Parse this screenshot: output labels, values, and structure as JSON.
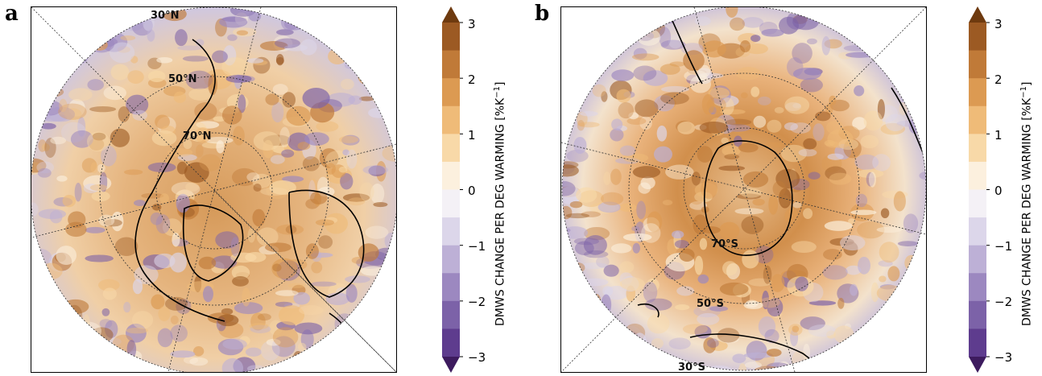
{
  "panels": [
    {
      "letter": "a",
      "hemisphere": "north",
      "lat_labels": [
        "30°N",
        "50°N",
        "70°N"
      ]
    },
    {
      "letter": "b",
      "hemisphere": "south",
      "lat_labels": [
        "30°S",
        "50°S",
        "70°S"
      ]
    }
  ],
  "colorbar": {
    "label": "DMWS CHANGE PER DEG WARMING [%K",
    "label_exponent": "−1",
    "label_close": "]",
    "ticks": [
      "3",
      "2",
      "1",
      "0",
      "−1",
      "−2",
      "−3"
    ],
    "tick_values": [
      3,
      2,
      1,
      0,
      -1,
      -2,
      -3
    ],
    "range": [
      -3,
      3
    ],
    "levels": 12,
    "colors": [
      "#3d1b5e",
      "#5e3c8e",
      "#7c62a8",
      "#9c88c0",
      "#bdb0d6",
      "#dcd6ea",
      "#f4f1f6",
      "#fcf0de",
      "#f8d9a8",
      "#efbb78",
      "#dc9a52",
      "#c07a38",
      "#9c5a23",
      "#6e3a0f"
    ]
  },
  "chart_data": {
    "type": "heatmap",
    "title": "",
    "variable": "DMWS CHANGE PER DEG WARMING [%K−1]",
    "zlim": [
      -3,
      3
    ],
    "panels": [
      "a",
      "b"
    ]
  }
}
